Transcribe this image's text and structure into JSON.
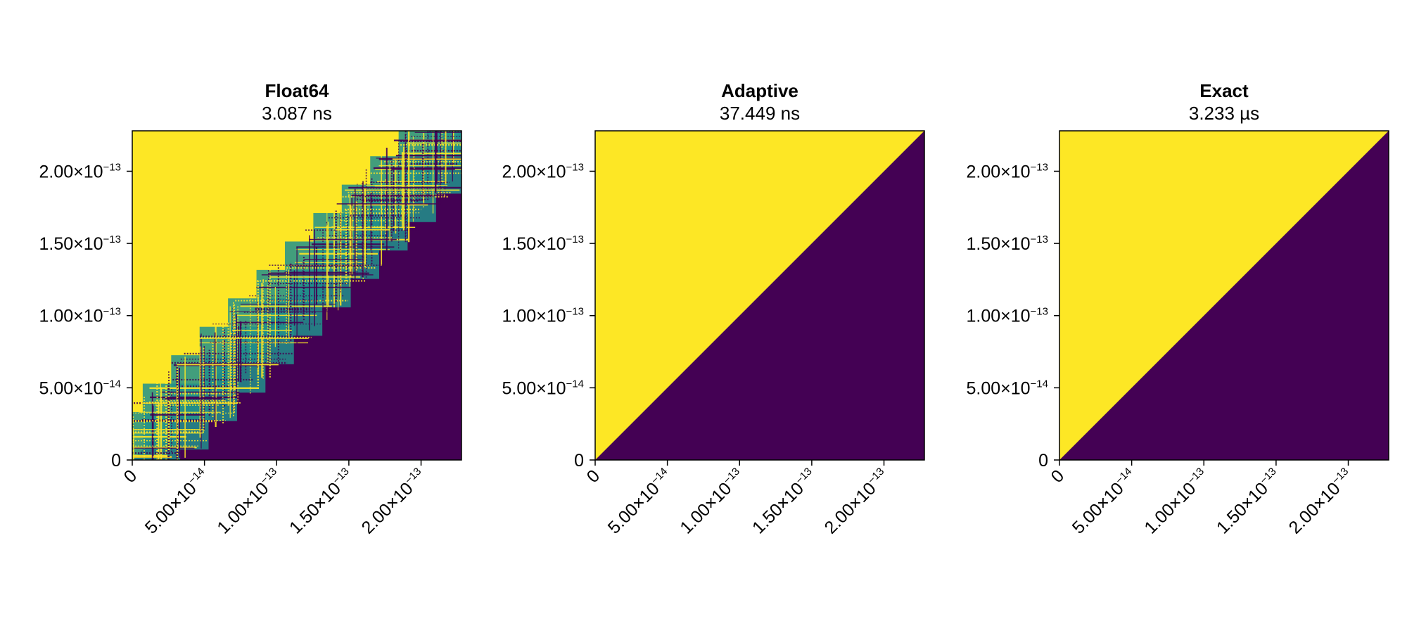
{
  "chart_data": [
    {
      "type": "heatmap",
      "title": "Float64",
      "subtitle": "3.087 ns",
      "xlim": [
        0,
        2.28e-13
      ],
      "ylim": [
        0,
        2.28e-13
      ],
      "x_ticks": [
        {
          "value": 0,
          "mantissa": "0",
          "exponent": ""
        },
        {
          "value": 5e-14,
          "mantissa": "5.00×10",
          "exponent": "−14"
        },
        {
          "value": 1e-13,
          "mantissa": "1.00×10",
          "exponent": "−13"
        },
        {
          "value": 1.5e-13,
          "mantissa": "1.50×10",
          "exponent": "−13"
        },
        {
          "value": 2e-13,
          "mantissa": "2.00×10",
          "exponent": "−13"
        }
      ],
      "y_ticks": [
        {
          "value": 0,
          "mantissa": "0",
          "exponent": ""
        },
        {
          "value": 5e-14,
          "mantissa": "5.00×10",
          "exponent": "−14"
        },
        {
          "value": 1e-13,
          "mantissa": "1.00×10",
          "exponent": "−13"
        },
        {
          "value": 1.5e-13,
          "mantissa": "1.50×10",
          "exponent": "−13"
        },
        {
          "value": 2e-13,
          "mantissa": "2.00×10",
          "exponent": "−13"
        }
      ],
      "pattern": "noisy-diagonal",
      "colors": {
        "above": "#fde725",
        "below": "#440154",
        "mixed": "#21918c"
      }
    },
    {
      "type": "heatmap",
      "title": "Adaptive",
      "subtitle": "37.449 ns",
      "xlim": [
        0,
        2.28e-13
      ],
      "ylim": [
        0,
        2.28e-13
      ],
      "x_ticks": [
        {
          "value": 0,
          "mantissa": "0",
          "exponent": ""
        },
        {
          "value": 5e-14,
          "mantissa": "5.00×10",
          "exponent": "−14"
        },
        {
          "value": 1e-13,
          "mantissa": "1.00×10",
          "exponent": "−13"
        },
        {
          "value": 1.5e-13,
          "mantissa": "1.50×10",
          "exponent": "−13"
        },
        {
          "value": 2e-13,
          "mantissa": "2.00×10",
          "exponent": "−13"
        }
      ],
      "y_ticks": [
        {
          "value": 0,
          "mantissa": "0",
          "exponent": ""
        },
        {
          "value": 5e-14,
          "mantissa": "5.00×10",
          "exponent": "−14"
        },
        {
          "value": 1e-13,
          "mantissa": "1.00×10",
          "exponent": "−13"
        },
        {
          "value": 1.5e-13,
          "mantissa": "1.50×10",
          "exponent": "−13"
        },
        {
          "value": 2e-13,
          "mantissa": "2.00×10",
          "exponent": "−13"
        }
      ],
      "pattern": "clean-diagonal",
      "colors": {
        "above": "#fde725",
        "below": "#440154"
      }
    },
    {
      "type": "heatmap",
      "title": "Exact",
      "subtitle": "3.233 µs",
      "xlim": [
        0,
        2.28e-13
      ],
      "ylim": [
        0,
        2.28e-13
      ],
      "x_ticks": [
        {
          "value": 0,
          "mantissa": "0",
          "exponent": ""
        },
        {
          "value": 5e-14,
          "mantissa": "5.00×10",
          "exponent": "−14"
        },
        {
          "value": 1e-13,
          "mantissa": "1.00×10",
          "exponent": "−13"
        },
        {
          "value": 1.5e-13,
          "mantissa": "1.50×10",
          "exponent": "−13"
        },
        {
          "value": 2e-13,
          "mantissa": "2.00×10",
          "exponent": "−13"
        }
      ],
      "y_ticks": [
        {
          "value": 0,
          "mantissa": "0",
          "exponent": ""
        },
        {
          "value": 5e-14,
          "mantissa": "5.00×10",
          "exponent": "−14"
        },
        {
          "value": 1e-13,
          "mantissa": "1.00×10",
          "exponent": "−13"
        },
        {
          "value": 1.5e-13,
          "mantissa": "1.50×10",
          "exponent": "−13"
        },
        {
          "value": 2e-13,
          "mantissa": "2.00×10",
          "exponent": "−13"
        }
      ],
      "pattern": "clean-diagonal",
      "colors": {
        "above": "#fde725",
        "below": "#440154"
      }
    }
  ]
}
